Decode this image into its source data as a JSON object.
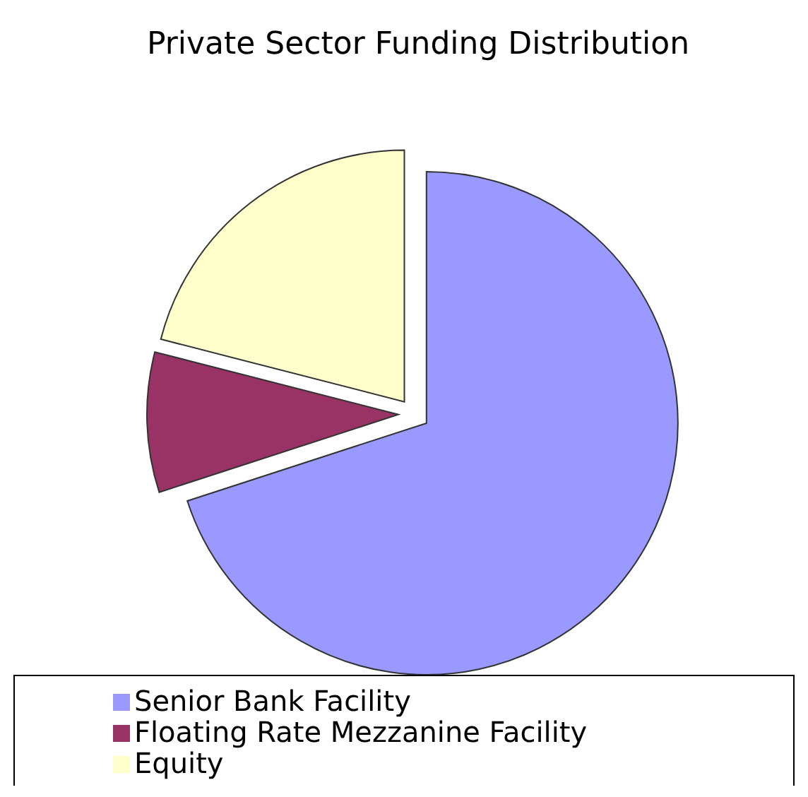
{
  "chart_data": {
    "type": "pie",
    "title": "Private Sector Funding Distribution",
    "categories": [
      "Senior Bank Facility",
      "Floating Rate Mezzanine Facility",
      "Equity"
    ],
    "values": [
      70,
      9,
      21
    ],
    "colors": [
      "#9999ff",
      "#993366",
      "#ffffcc"
    ],
    "legend": "bottom"
  }
}
